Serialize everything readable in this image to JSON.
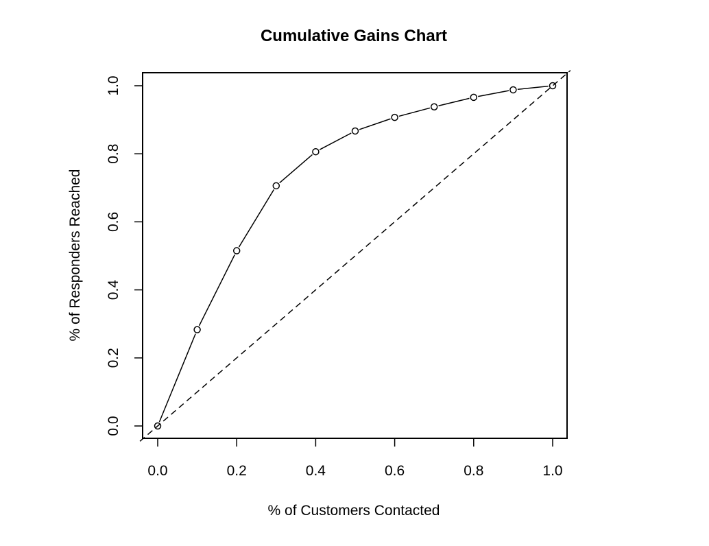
{
  "chart_data": {
    "type": "line",
    "title": "Cumulative Gains Chart",
    "xlabel": "% of Customers Contacted",
    "ylabel": "% of Responders Reached",
    "xlim": [
      0.0,
      1.0
    ],
    "ylim": [
      0.0,
      1.0
    ],
    "x_ticks": [
      "0.0",
      "0.2",
      "0.4",
      "0.6",
      "0.8",
      "1.0"
    ],
    "y_ticks": [
      "0.0",
      "0.2",
      "0.4",
      "0.6",
      "0.8",
      "1.0"
    ],
    "grid": false,
    "legend": "none",
    "series": [
      {
        "style": "solid line with open circles",
        "x": [
          0.0,
          0.1,
          0.2,
          0.3,
          0.4,
          0.5,
          0.6,
          0.7,
          0.8,
          0.9,
          1.0
        ],
        "y": [
          0.0,
          0.283,
          0.515,
          0.706,
          0.806,
          0.867,
          0.907,
          0.938,
          0.966,
          0.988,
          1.0
        ]
      }
    ],
    "reference_line": {
      "style": "dashed",
      "from": [
        0.0,
        0.0
      ],
      "to": [
        1.0,
        1.0
      ]
    },
    "colors": {
      "line": "#000000",
      "background": "#ffffff"
    }
  }
}
